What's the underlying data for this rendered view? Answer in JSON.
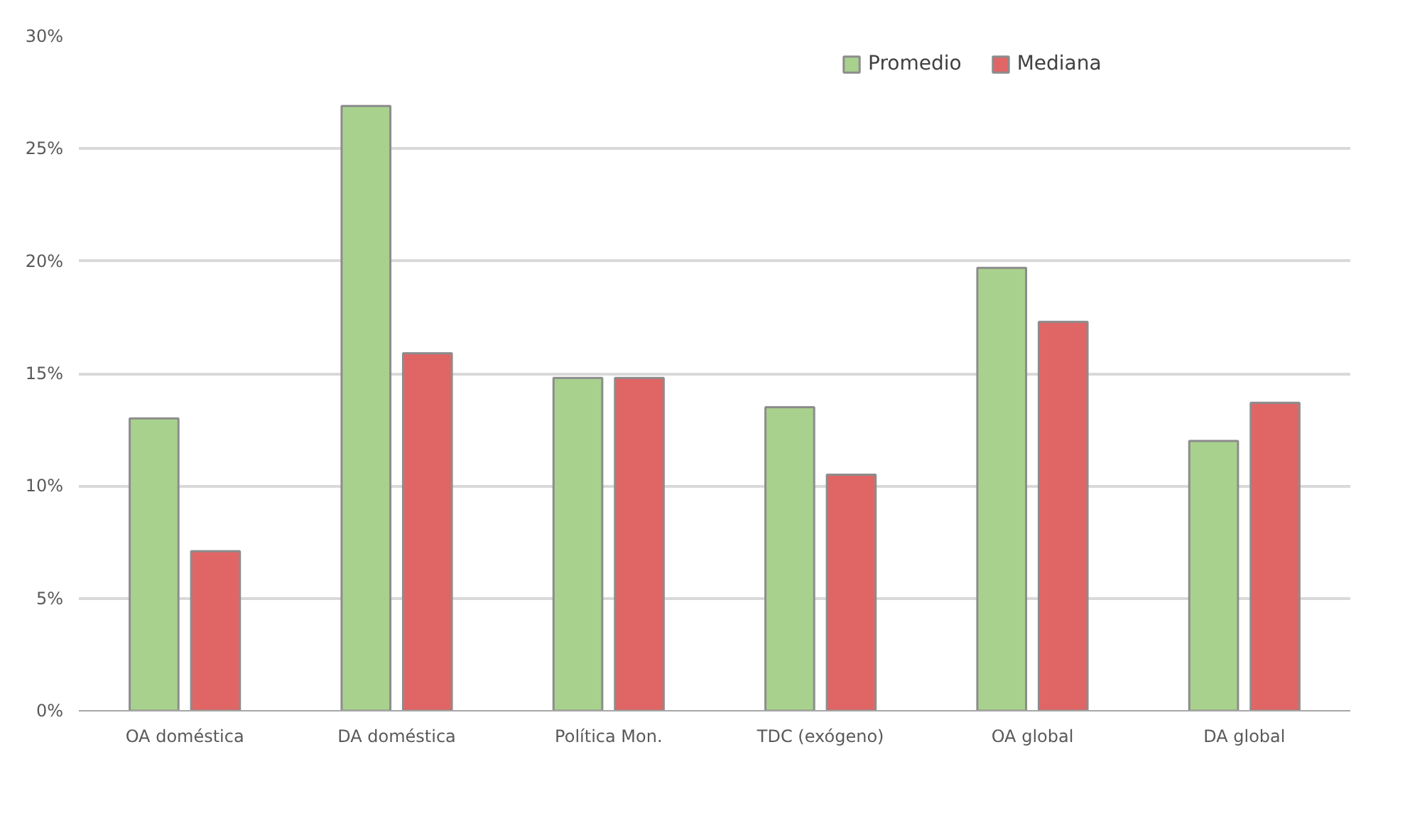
{
  "chart_data": {
    "type": "bar",
    "categories": [
      "OA doméstica",
      "DA doméstica",
      "Política Mon.",
      "TDC (exógeno)",
      "OA global",
      "DA global"
    ],
    "series": [
      {
        "name": "Promedio",
        "color": "#a9d18e",
        "values": [
          13.0,
          26.9,
          14.8,
          13.5,
          19.7,
          12.0
        ]
      },
      {
        "name": "Mediana",
        "color": "#e06666",
        "values": [
          7.1,
          15.9,
          14.8,
          10.5,
          17.3,
          13.7
        ]
      }
    ],
    "ylim": [
      0,
      30
    ],
    "yticks": [
      {
        "value": 0,
        "label": "0%"
      },
      {
        "value": 5,
        "label": "5%"
      },
      {
        "value": 10,
        "label": "10%"
      },
      {
        "value": 15,
        "label": "15%"
      },
      {
        "value": 20,
        "label": "20%"
      },
      {
        "value": 25,
        "label": "25%"
      },
      {
        "value": 30,
        "label": "30%"
      }
    ],
    "grid": "y",
    "legend": "top"
  }
}
